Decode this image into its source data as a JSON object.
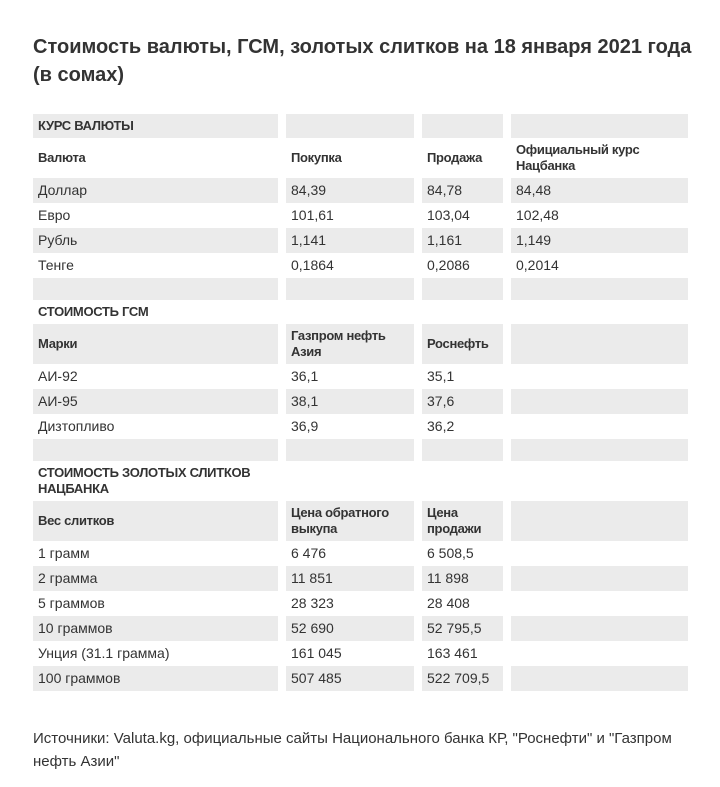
{
  "page": {
    "title": "Стоимость валюты, ГСМ, золотых слитков на 18 января 2021 года (в сомах)",
    "title_lines": [
      "Стоимость валюты, ГСМ, золотых слитков на 18 января 2021 года",
      "(в сомах)"
    ],
    "footer": "Источники: Valuta.kg, официальные сайты Национального банка КР, \"Роснефти\" и \"Газпром нефть Азии\""
  },
  "colors": {
    "stripe": "#ebebeb",
    "text": "#333333",
    "page_background": "#ffffff"
  },
  "chart_data": [
    {
      "type": "table",
      "title": "КУРС ВАЛЮТЫ",
      "columns": [
        "Валюта",
        "Покупка",
        "Продажа",
        "Официальный курс Нацбанка"
      ],
      "rows": [
        [
          "Доллар",
          "84,39",
          "84,78",
          "84,48"
        ],
        [
          "Евро",
          "101,61",
          "103,04",
          "102,48"
        ],
        [
          "Рубль",
          "1,141",
          "1,161",
          "1,149"
        ],
        [
          "Тенге",
          "0,1864",
          "0,2086",
          "0,2014"
        ]
      ]
    },
    {
      "type": "table",
      "title": "СТОИМОСТЬ ГСМ",
      "columns": [
        "Марки",
        "Газпром нефть Азия",
        "Роснефть",
        ""
      ],
      "rows": [
        [
          "АИ-92",
          "36,1",
          "35,1",
          ""
        ],
        [
          "АИ-95",
          "38,1",
          "37,6",
          ""
        ],
        [
          "Дизтопливо",
          "36,9",
          "36,2",
          ""
        ]
      ]
    },
    {
      "type": "table",
      "title": "СТОИМОСТЬ ЗОЛОТЫХ СЛИТКОВ НАЦБАНКА",
      "columns": [
        "Вес слитков",
        "Цена обратного выкупа",
        "Цена продажи",
        ""
      ],
      "rows": [
        [
          "1 грамм",
          "6 476",
          "6 508,5",
          ""
        ],
        [
          "2 грамма",
          "11 851",
          "11 898",
          ""
        ],
        [
          "5 граммов",
          "28 323",
          "28 408",
          ""
        ],
        [
          "10 граммов",
          "52 690",
          "52 795,5",
          ""
        ],
        [
          "Унция (31.1 грамма)",
          "161 045",
          "163 461",
          ""
        ],
        [
          "100 граммов",
          "507 485",
          "522 709,5",
          ""
        ]
      ]
    }
  ]
}
